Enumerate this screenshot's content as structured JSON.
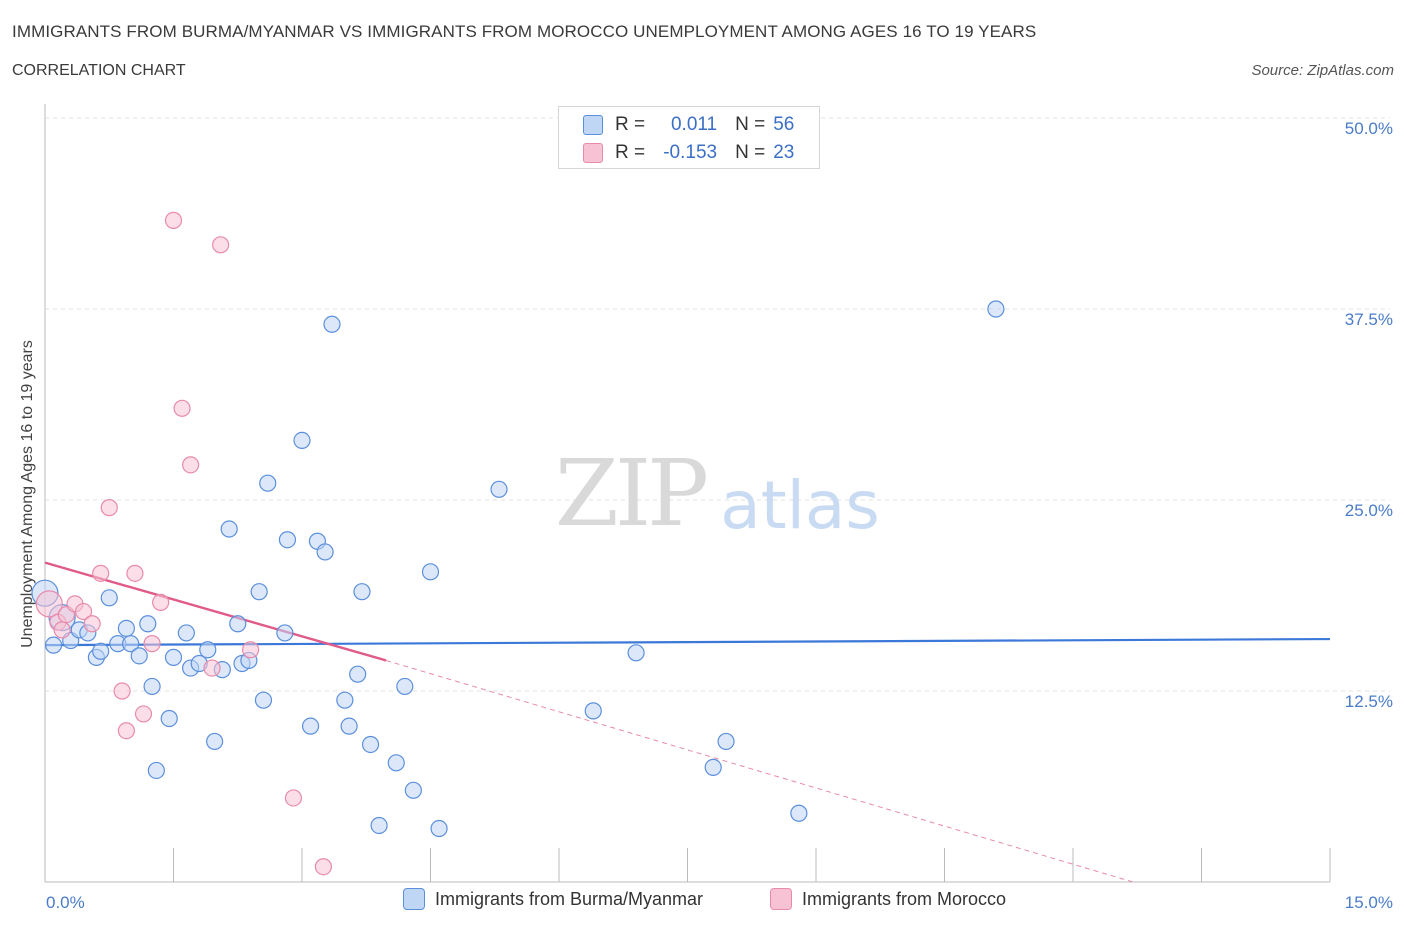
{
  "title": "IMMIGRANTS FROM BURMA/MYANMAR VS IMMIGRANTS FROM MOROCCO UNEMPLOYMENT AMONG AGES 16 TO 19 YEARS",
  "subtitle": "CORRELATION CHART",
  "source": "Source: ZipAtlas.com",
  "watermark": {
    "zip": "ZIP",
    "atlas": "atlas"
  },
  "legend": {
    "rows": [
      {
        "r_label": "R =",
        "r_value": "0.011",
        "n_label": "N =",
        "n_value": "56"
      },
      {
        "r_label": "R =",
        "r_value": "-0.153",
        "n_label": "N =",
        "n_value": "23"
      }
    ]
  },
  "colors": {
    "blue": "#3b78d8",
    "blue_fill": "#c0d6f5",
    "pink": "#e05a8a",
    "pink_fill": "#f7c3d4",
    "tick": "#4a7cc9",
    "grid": "#dddddd"
  },
  "chart_data": {
    "type": "scatter",
    "title": "IMMIGRANTS FROM BURMA/MYANMAR VS IMMIGRANTS FROM MOROCCO UNEMPLOYMENT AMONG AGES 16 TO 19 YEARS",
    "xlabel": "",
    "ylabel": "Unemployment Among Ages 16 to 19 years",
    "xlim": [
      0,
      15
    ],
    "ylim": [
      0,
      50
    ],
    "x_tick_labels": [
      "0.0%",
      "15.0%"
    ],
    "y_ticks": [
      12.5,
      25.0,
      37.5,
      50.0
    ],
    "y_tick_labels": [
      "12.5%",
      "25.0%",
      "37.5%",
      "50.0%"
    ],
    "series": [
      {
        "name": "Immigrants from Burma/Myanmar",
        "color": "#3b78d8",
        "trend": {
          "x0": 0,
          "y0": 15.5,
          "x1": 15,
          "y1": 15.9
        },
        "points": [
          [
            0.1,
            15.5
          ],
          [
            0.3,
            15.8
          ],
          [
            0.4,
            16.5
          ],
          [
            0.5,
            16.3
          ],
          [
            0.6,
            14.7
          ],
          [
            0.65,
            15.1
          ],
          [
            0.75,
            18.6
          ],
          [
            0.85,
            15.6
          ],
          [
            0.95,
            16.6
          ],
          [
            1.0,
            15.6
          ],
          [
            1.1,
            14.8
          ],
          [
            1.2,
            16.9
          ],
          [
            1.25,
            12.8
          ],
          [
            1.3,
            7.3
          ],
          [
            1.45,
            10.7
          ],
          [
            1.5,
            14.7
          ],
          [
            1.65,
            16.3
          ],
          [
            1.7,
            14.0
          ],
          [
            1.8,
            14.3
          ],
          [
            1.9,
            15.2
          ],
          [
            1.98,
            9.2
          ],
          [
            2.07,
            13.9
          ],
          [
            2.15,
            23.1
          ],
          [
            2.25,
            16.9
          ],
          [
            2.3,
            14.3
          ],
          [
            2.38,
            14.5
          ],
          [
            2.5,
            19.0
          ],
          [
            2.55,
            11.9
          ],
          [
            2.6,
            26.1
          ],
          [
            2.8,
            16.3
          ],
          [
            2.83,
            22.4
          ],
          [
            3.0,
            28.9
          ],
          [
            3.1,
            10.2
          ],
          [
            3.18,
            22.3
          ],
          [
            3.27,
            21.6
          ],
          [
            3.35,
            36.5
          ],
          [
            3.5,
            11.9
          ],
          [
            3.55,
            10.2
          ],
          [
            3.65,
            13.6
          ],
          [
            3.7,
            19.0
          ],
          [
            3.8,
            9.0
          ],
          [
            3.9,
            3.7
          ],
          [
            4.1,
            7.8
          ],
          [
            4.2,
            12.8
          ],
          [
            4.3,
            6.0
          ],
          [
            4.5,
            20.3
          ],
          [
            4.6,
            3.5
          ],
          [
            5.3,
            25.7
          ],
          [
            6.4,
            11.2
          ],
          [
            6.9,
            15.0
          ],
          [
            7.8,
            7.5
          ],
          [
            7.95,
            9.2
          ],
          [
            8.8,
            4.5
          ],
          [
            11.1,
            37.5
          ],
          [
            0.0,
            18.9
          ],
          [
            0.2,
            17.3
          ]
        ]
      },
      {
        "name": "Immigrants from Morocco",
        "color": "#e05a8a",
        "trend": {
          "x0": 0,
          "y0": 20.9,
          "x1": 3.98,
          "y1": 14.5
        },
        "trend_extension": {
          "x0": 3.98,
          "y0": 14.5,
          "x1": 12.7,
          "y1": 0
        },
        "points": [
          [
            0.05,
            18.2
          ],
          [
            0.15,
            17.0
          ],
          [
            0.2,
            16.5
          ],
          [
            0.25,
            17.5
          ],
          [
            0.35,
            18.2
          ],
          [
            0.45,
            17.7
          ],
          [
            0.55,
            16.9
          ],
          [
            0.65,
            20.2
          ],
          [
            0.75,
            24.5
          ],
          [
            0.9,
            12.5
          ],
          [
            0.95,
            9.9
          ],
          [
            1.05,
            20.2
          ],
          [
            1.15,
            11.0
          ],
          [
            1.25,
            15.6
          ],
          [
            1.35,
            18.3
          ],
          [
            1.5,
            43.3
          ],
          [
            1.6,
            31.0
          ],
          [
            1.7,
            27.3
          ],
          [
            1.95,
            14.0
          ],
          [
            2.05,
            41.7
          ],
          [
            2.4,
            15.2
          ],
          [
            2.9,
            5.5
          ],
          [
            3.25,
            1.0
          ]
        ]
      }
    ]
  },
  "bottom_legend": {
    "items": [
      {
        "label": "Immigrants from Burma/Myanmar"
      },
      {
        "label": "Immigrants from Morocco"
      }
    ]
  }
}
